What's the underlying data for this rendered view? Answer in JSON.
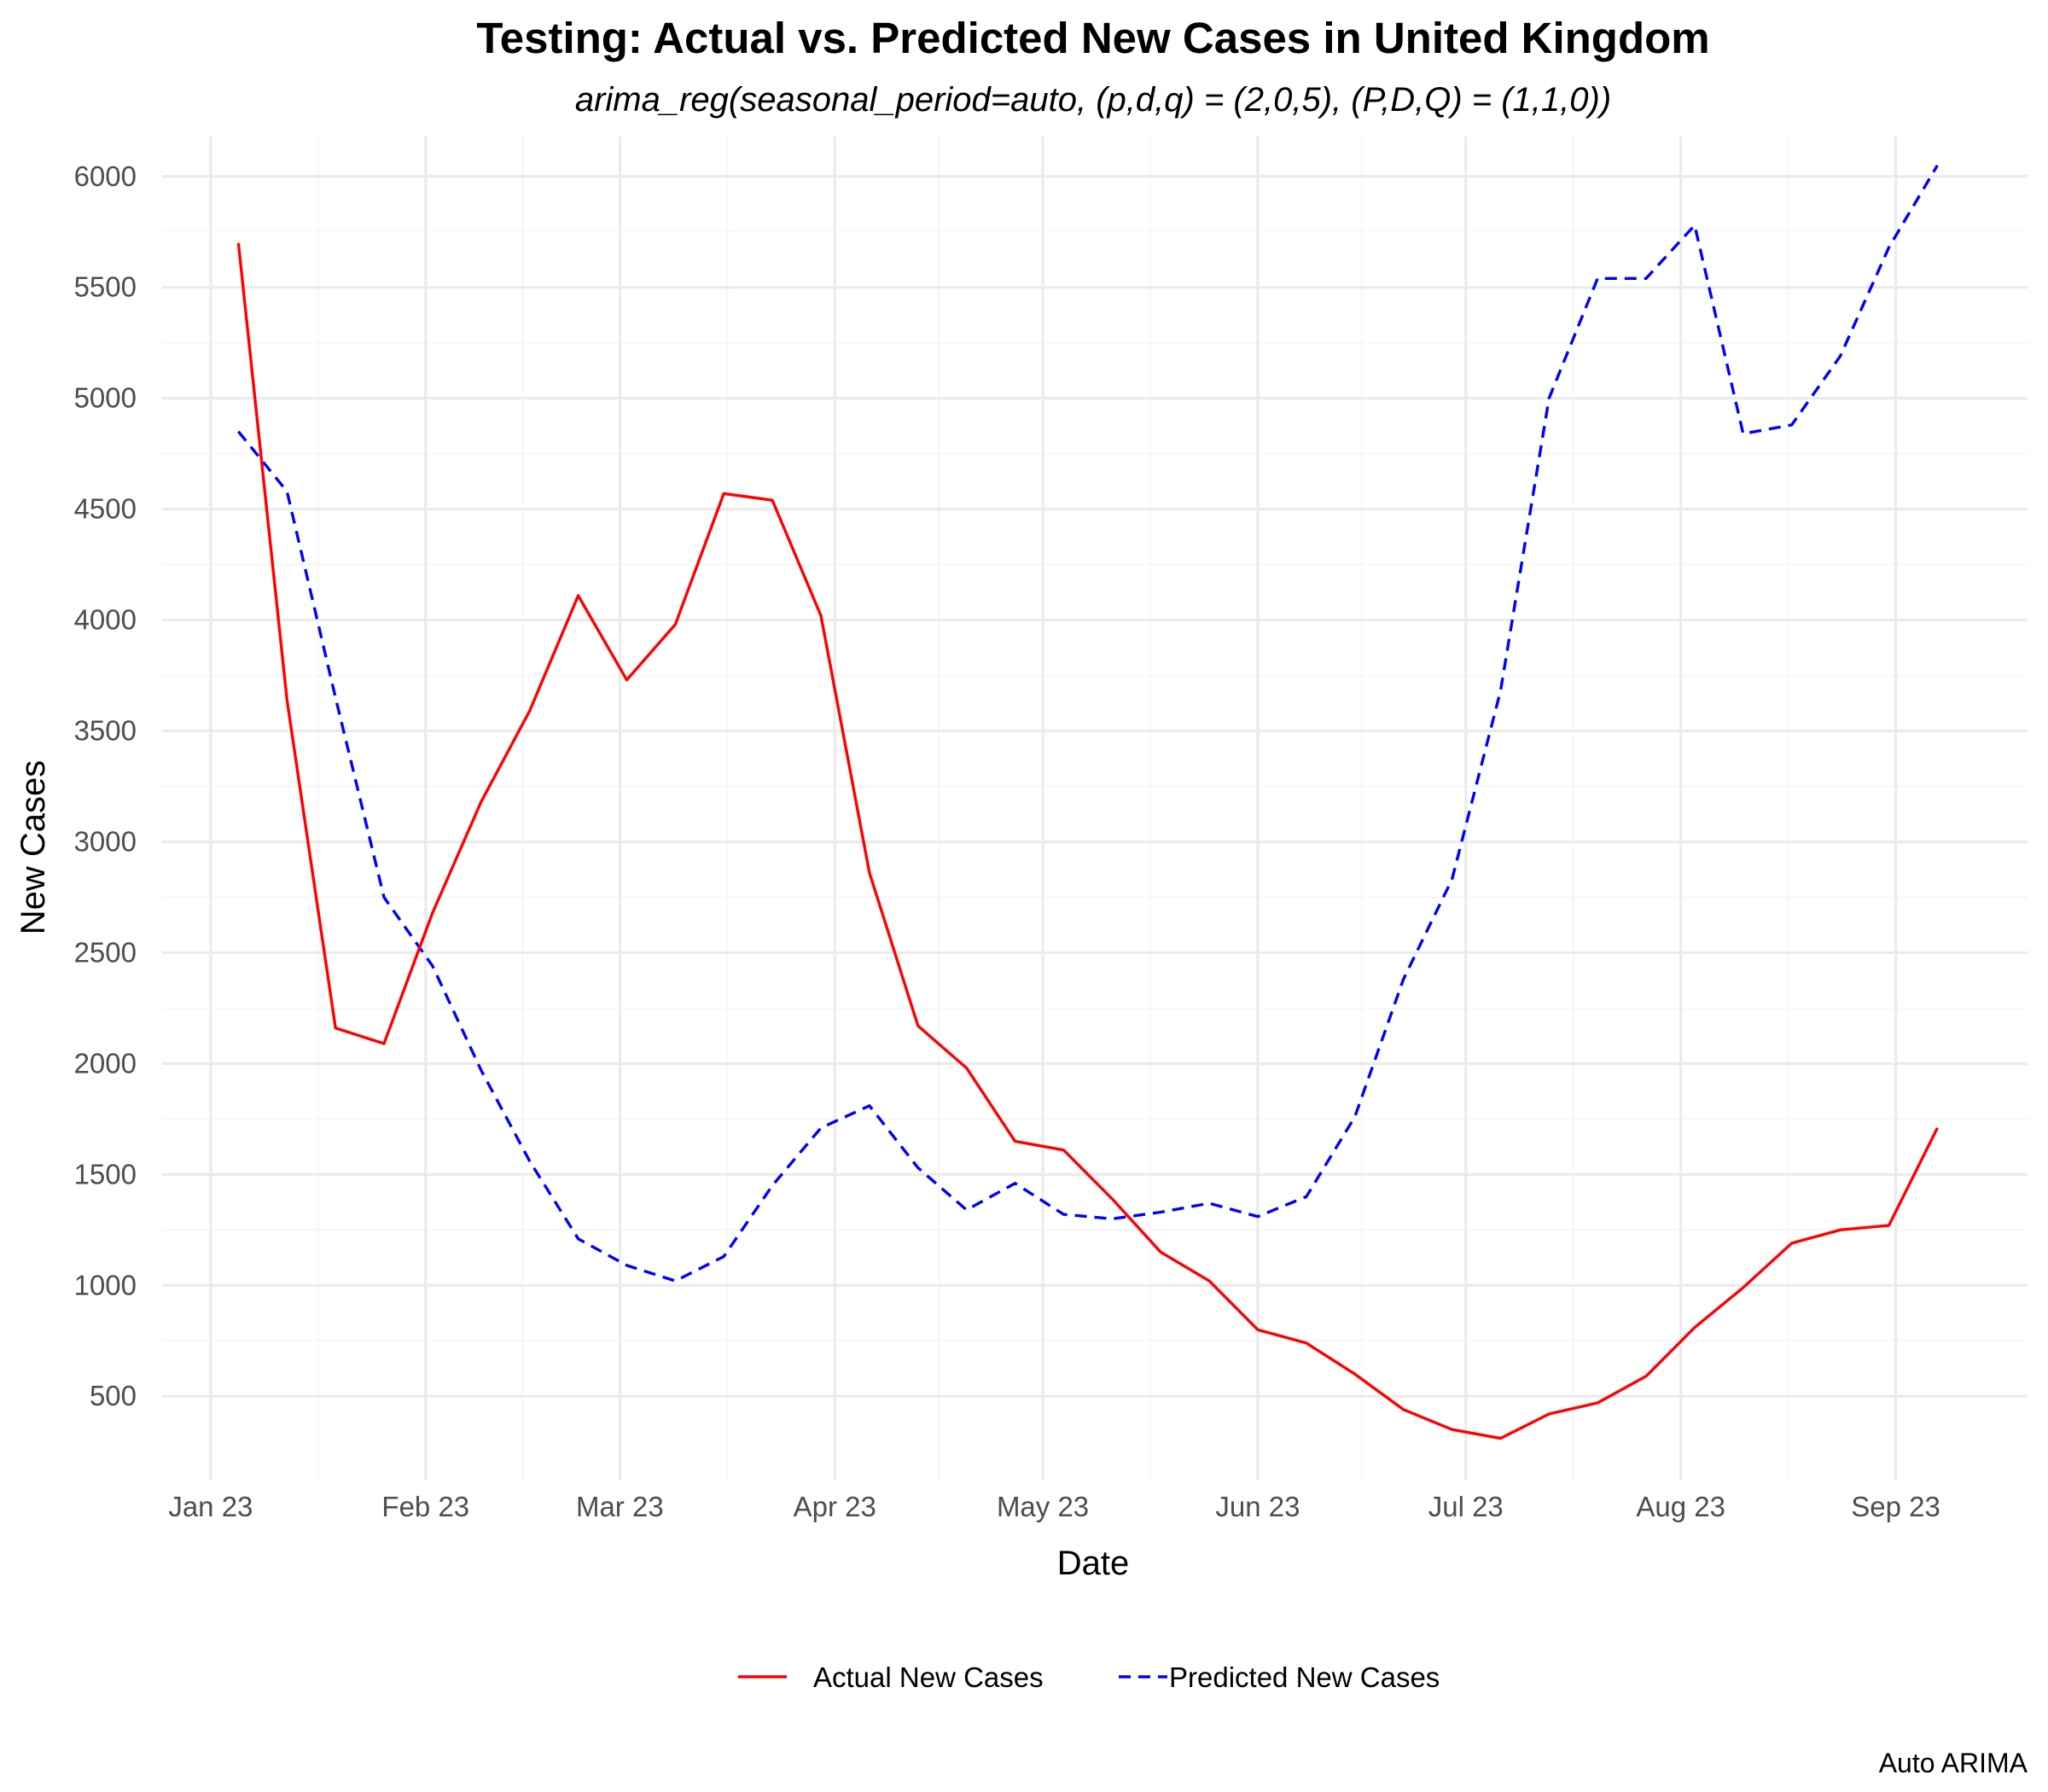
{
  "chart_data": {
    "type": "line",
    "title": "Testing: Actual vs. Predicted New Cases in United Kingdom",
    "subtitle": "arima_reg(seasonal_period=auto, (p,d,q) = (2,0,5), (P,D,Q) = (1,1,0))",
    "xlabel": "Date",
    "ylabel": "New Cases",
    "caption": "Auto ARIMA",
    "x_ticks": [
      {
        "date": "2023-01-01",
        "label": "Jan 23"
      },
      {
        "date": "2023-02-01",
        "label": "Feb 23"
      },
      {
        "date": "2023-03-01",
        "label": "Mar 23"
      },
      {
        "date": "2023-04-01",
        "label": "Apr 23"
      },
      {
        "date": "2023-05-01",
        "label": "May 23"
      },
      {
        "date": "2023-06-01",
        "label": "Jun 23"
      },
      {
        "date": "2023-07-01",
        "label": "Jul 23"
      },
      {
        "date": "2023-08-01",
        "label": "Aug 23"
      },
      {
        "date": "2023-09-01",
        "label": "Sep 23"
      }
    ],
    "y_ticks": [
      500,
      1000,
      1500,
      2000,
      2500,
      3000,
      3500,
      4000,
      4500,
      5000,
      5500,
      6000
    ],
    "xlim": [
      "2022-12-25",
      "2023-09-20"
    ],
    "ylim": [
      120,
      6180
    ],
    "grid": true,
    "legend_position": "bottom",
    "x": [
      "2023-01-05",
      "2023-01-12",
      "2023-01-19",
      "2023-01-26",
      "2023-02-02",
      "2023-02-09",
      "2023-02-16",
      "2023-02-23",
      "2023-03-02",
      "2023-03-09",
      "2023-03-16",
      "2023-03-23",
      "2023-03-30",
      "2023-04-06",
      "2023-04-13",
      "2023-04-20",
      "2023-04-27",
      "2023-05-04",
      "2023-05-11",
      "2023-05-18",
      "2023-05-25",
      "2023-06-01",
      "2023-06-08",
      "2023-06-15",
      "2023-06-22",
      "2023-06-29",
      "2023-07-06",
      "2023-07-13",
      "2023-07-20",
      "2023-07-27",
      "2023-08-03",
      "2023-08-10",
      "2023-08-17",
      "2023-08-24",
      "2023-08-31",
      "2023-09-07"
    ],
    "series": [
      {
        "name": "Actual New Cases",
        "color": "#ff0000",
        "dash": "solid",
        "values": [
          5700,
          3640,
          2160,
          2090,
          2680,
          3180,
          3590,
          4110,
          3730,
          3980,
          4570,
          4540,
          4020,
          2860,
          2170,
          1980,
          1650,
          1610,
          1390,
          1150,
          1020,
          800,
          740,
          600,
          440,
          350,
          310,
          420,
          470,
          590,
          810,
          990,
          1190,
          1250,
          1270,
          1710
        ]
      },
      {
        "name": "Predicted New Cases",
        "color": "#0000ff",
        "dash": "dashed",
        "values": [
          4850,
          4580,
          3650,
          2750,
          2440,
          1970,
          1560,
          1210,
          1090,
          1020,
          1130,
          1450,
          1710,
          1810,
          1530,
          1340,
          1460,
          1320,
          1300,
          1330,
          1370,
          1310,
          1400,
          1760,
          2380,
          2830,
          3680,
          5000,
          5540,
          5540,
          5780,
          4840,
          4880,
          5190,
          5680,
          6050
        ]
      }
    ]
  }
}
